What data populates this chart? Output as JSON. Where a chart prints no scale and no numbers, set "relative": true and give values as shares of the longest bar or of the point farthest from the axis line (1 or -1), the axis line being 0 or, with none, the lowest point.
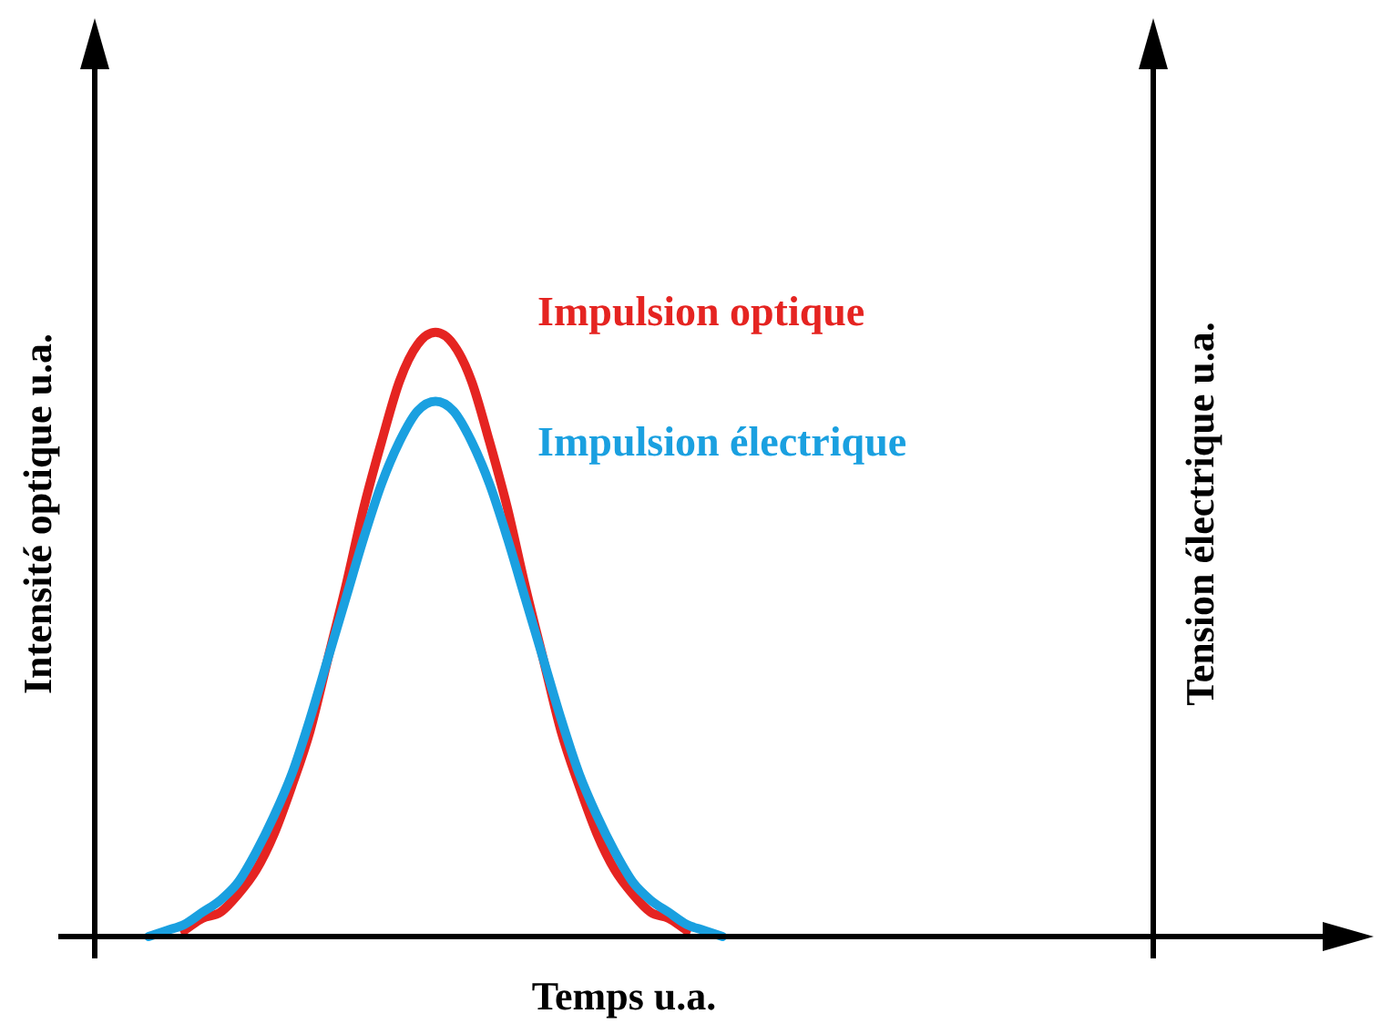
{
  "chart_data": {
    "type": "line",
    "relative": true,
    "xlabel": "Temps u.a.",
    "ylabel": "Intensité optique u.a.",
    "y2label": "Tension électrique u.a.",
    "legend": false,
    "grid": false,
    "marker": "none",
    "line_style": "solid",
    "categories": [
      null,
      null,
      null,
      null,
      null,
      null,
      null,
      null,
      null,
      null,
      null,
      null,
      null,
      null,
      null,
      null,
      null,
      null,
      null,
      null,
      null,
      null,
      null,
      null,
      null,
      null,
      null,
      null,
      null,
      null,
      null,
      null,
      null,
      null,
      null,
      null,
      null,
      null,
      null,
      null,
      null,
      null,
      null,
      null,
      null,
      null,
      null,
      null,
      null,
      null,
      null,
      null,
      null,
      null,
      null,
      null,
      null,
      null,
      null
    ],
    "series": [
      {
        "name": "Impulsion optique",
        "color": "#e52421",
        "values": [
          null,
          null,
          null,
          null,
          null,
          0.01,
          0.03,
          0.04,
          0.07,
          0.11,
          0.17,
          0.25,
          0.34,
          0.46,
          0.58,
          0.71,
          0.82,
          0.92,
          0.98,
          1,
          0.98,
          0.92,
          0.82,
          0.71,
          0.58,
          0.46,
          0.34,
          0.25,
          0.17,
          0.11,
          0.07,
          0.04,
          0.03,
          0.01,
          null,
          null,
          null,
          null,
          null,
          null,
          null,
          null,
          null,
          null,
          null,
          null,
          null,
          null,
          null,
          null,
          null,
          null,
          null,
          null,
          null,
          null,
          null,
          null,
          null
        ]
      },
      {
        "name": "Impulsion électrique",
        "color": "#1aa0e0",
        "values": [
          null,
          null,
          null,
          0,
          0.01,
          0.02,
          0.04,
          0.06,
          0.09,
          0.14,
          0.2,
          0.27,
          0.36,
          0.46,
          0.56,
          0.66,
          0.75,
          0.82,
          0.87,
          0.886,
          0.87,
          0.82,
          0.75,
          0.66,
          0.56,
          0.46,
          0.36,
          0.27,
          0.2,
          0.14,
          0.09,
          0.06,
          0.04,
          0.02,
          0.01,
          0,
          null,
          null,
          null,
          null,
          null,
          null,
          null,
          null,
          null,
          null,
          null,
          null,
          null,
          null,
          null,
          null,
          null,
          null,
          null,
          null,
          null,
          null,
          null
        ]
      }
    ]
  }
}
